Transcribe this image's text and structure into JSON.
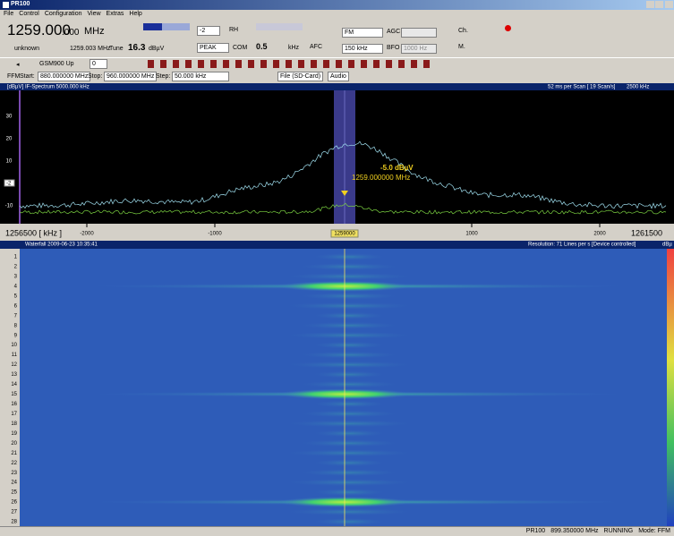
{
  "window": {
    "title": "PR100"
  },
  "menu": [
    "File",
    "Control",
    "Configuration",
    "View",
    "Extras",
    "Help"
  ],
  "toolbar": {
    "frequency_main": "1259.000",
    "frequency_fine": ".000",
    "frequency_unit": "MHz",
    "mode_label": "unknown",
    "frequency_sub": "1259.003 MHz",
    "tune": "Tune",
    "level": "16.3",
    "level_unit": "dBµV",
    "attenuation": "-2",
    "rf_label": "RH",
    "detector": "PEAK",
    "step_label": "COM",
    "step_value": "0.5",
    "step_unit": "kHz",
    "afc": "AFC",
    "demod": "FM",
    "agc": "AGC",
    "bandwidth": "150 kHz",
    "bfo": "BFO",
    "bfo_value": "1000 Hz",
    "channel": "Ch.",
    "memory": "M."
  },
  "toolbar2": {
    "band": "GSM900 Up",
    "value": "0"
  },
  "ffm": {
    "mode": "FFM",
    "start_label": "Start:",
    "start": "880.000000 MHz",
    "stop_label": "Stop:",
    "stop": "960.000000 MHz",
    "step_label": "Step:",
    "step": "50.000 kHz",
    "record": "File (SD-Card)",
    "audio": "Audio"
  },
  "spectrum": {
    "unit": "[dBµV]",
    "title": "IF-Spectrum 5000.000 kHz",
    "scan_info": "52 ms per Scan [ 19 Scan/s]",
    "span": "2500 kHz",
    "y_labels": [
      "30",
      "20",
      "10",
      "-10"
    ],
    "ref_box": "-2",
    "marker_level": "-5.0 dBµV",
    "marker_freq": "1259.000000 MHz",
    "x_left": "1256500 [ kHz ]",
    "x_labels": [
      "-2000",
      "-1000",
      "1000",
      "2000"
    ],
    "x_center": "1259000",
    "x_right": "1261500"
  },
  "waterfall": {
    "title": "Waterfall 2009-06-23 10:35:41",
    "resolution": "Resolution: 71 Lines per s [Device controlled]",
    "unit": "dBµ",
    "rows": [
      "1",
      "2",
      "3",
      "4",
      "5",
      "6",
      "7",
      "8",
      "9",
      "10",
      "11",
      "12",
      "13",
      "14",
      "15",
      "16",
      "17",
      "18",
      "19",
      "20",
      "21",
      "22",
      "23",
      "24",
      "25",
      "26",
      "27",
      "28"
    ]
  },
  "status": {
    "device": "PR100",
    "frequency": "899.350000 MHz",
    "state": "RUNNING",
    "mode": "Mode: FFM"
  }
}
